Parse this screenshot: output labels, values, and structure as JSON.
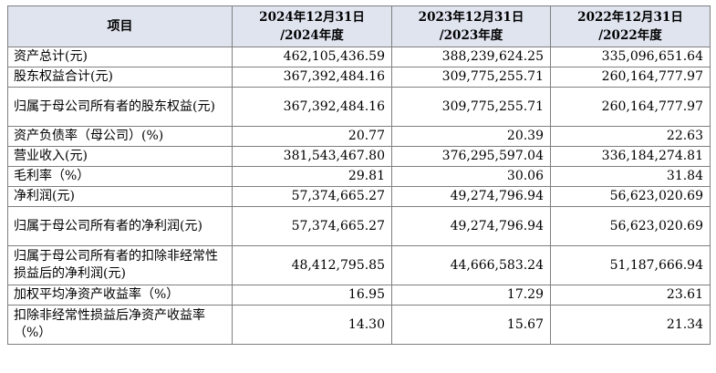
{
  "header": {
    "item": "项目",
    "cols": [
      {
        "line1": "2024年12月31日",
        "line2": "/2024年度"
      },
      {
        "line1": "2023年12月31日",
        "line2": "/2023年度"
      },
      {
        "line1": "2022年12月31日",
        "line2": "/2022年度"
      }
    ]
  },
  "rows": [
    {
      "label": "资产总计(元)",
      "v": [
        "462,105,436.59",
        "388,239,624.25",
        "335,096,651.64"
      ]
    },
    {
      "label": "股东权益合计(元)",
      "v": [
        "367,392,484.16",
        "309,775,255.71",
        "260,164,777.97"
      ]
    },
    {
      "label": "归属于母公司所有者的股东权益(元)",
      "v": [
        "367,392,484.16",
        "309,775,255.71",
        "260,164,777.97"
      ]
    },
    {
      "label": "资产负债率（母公司）(%)",
      "v": [
        "20.77",
        "20.39",
        "22.63"
      ]
    },
    {
      "label": "营业收入(元)",
      "v": [
        "381,543,467.80",
        "376,295,597.04",
        "336,184,274.81"
      ]
    },
    {
      "label": "毛利率（%）",
      "v": [
        "29.81",
        "30.06",
        "31.84"
      ]
    },
    {
      "label": "净利润(元)",
      "v": [
        "57,374,665.27",
        "49,274,796.94",
        "56,623,020.69"
      ]
    },
    {
      "label": "归属于母公司所有者的净利润(元)",
      "v": [
        "57,374,665.27",
        "49,274,796.94",
        "56,623,020.69"
      ]
    },
    {
      "label": "归属于母公司所有者的扣除非经常性损益后的净利润(元)",
      "v": [
        "48,412,795.85",
        "44,666,583.24",
        "51,187,666.94"
      ]
    },
    {
      "label": "加权平均净资产收益率（%）",
      "v": [
        "16.95",
        "17.29",
        "23.61"
      ]
    },
    {
      "label": "扣除非经常性损益后净资产收益率（%）",
      "v": [
        "14.30",
        "15.67",
        "21.34"
      ]
    }
  ]
}
